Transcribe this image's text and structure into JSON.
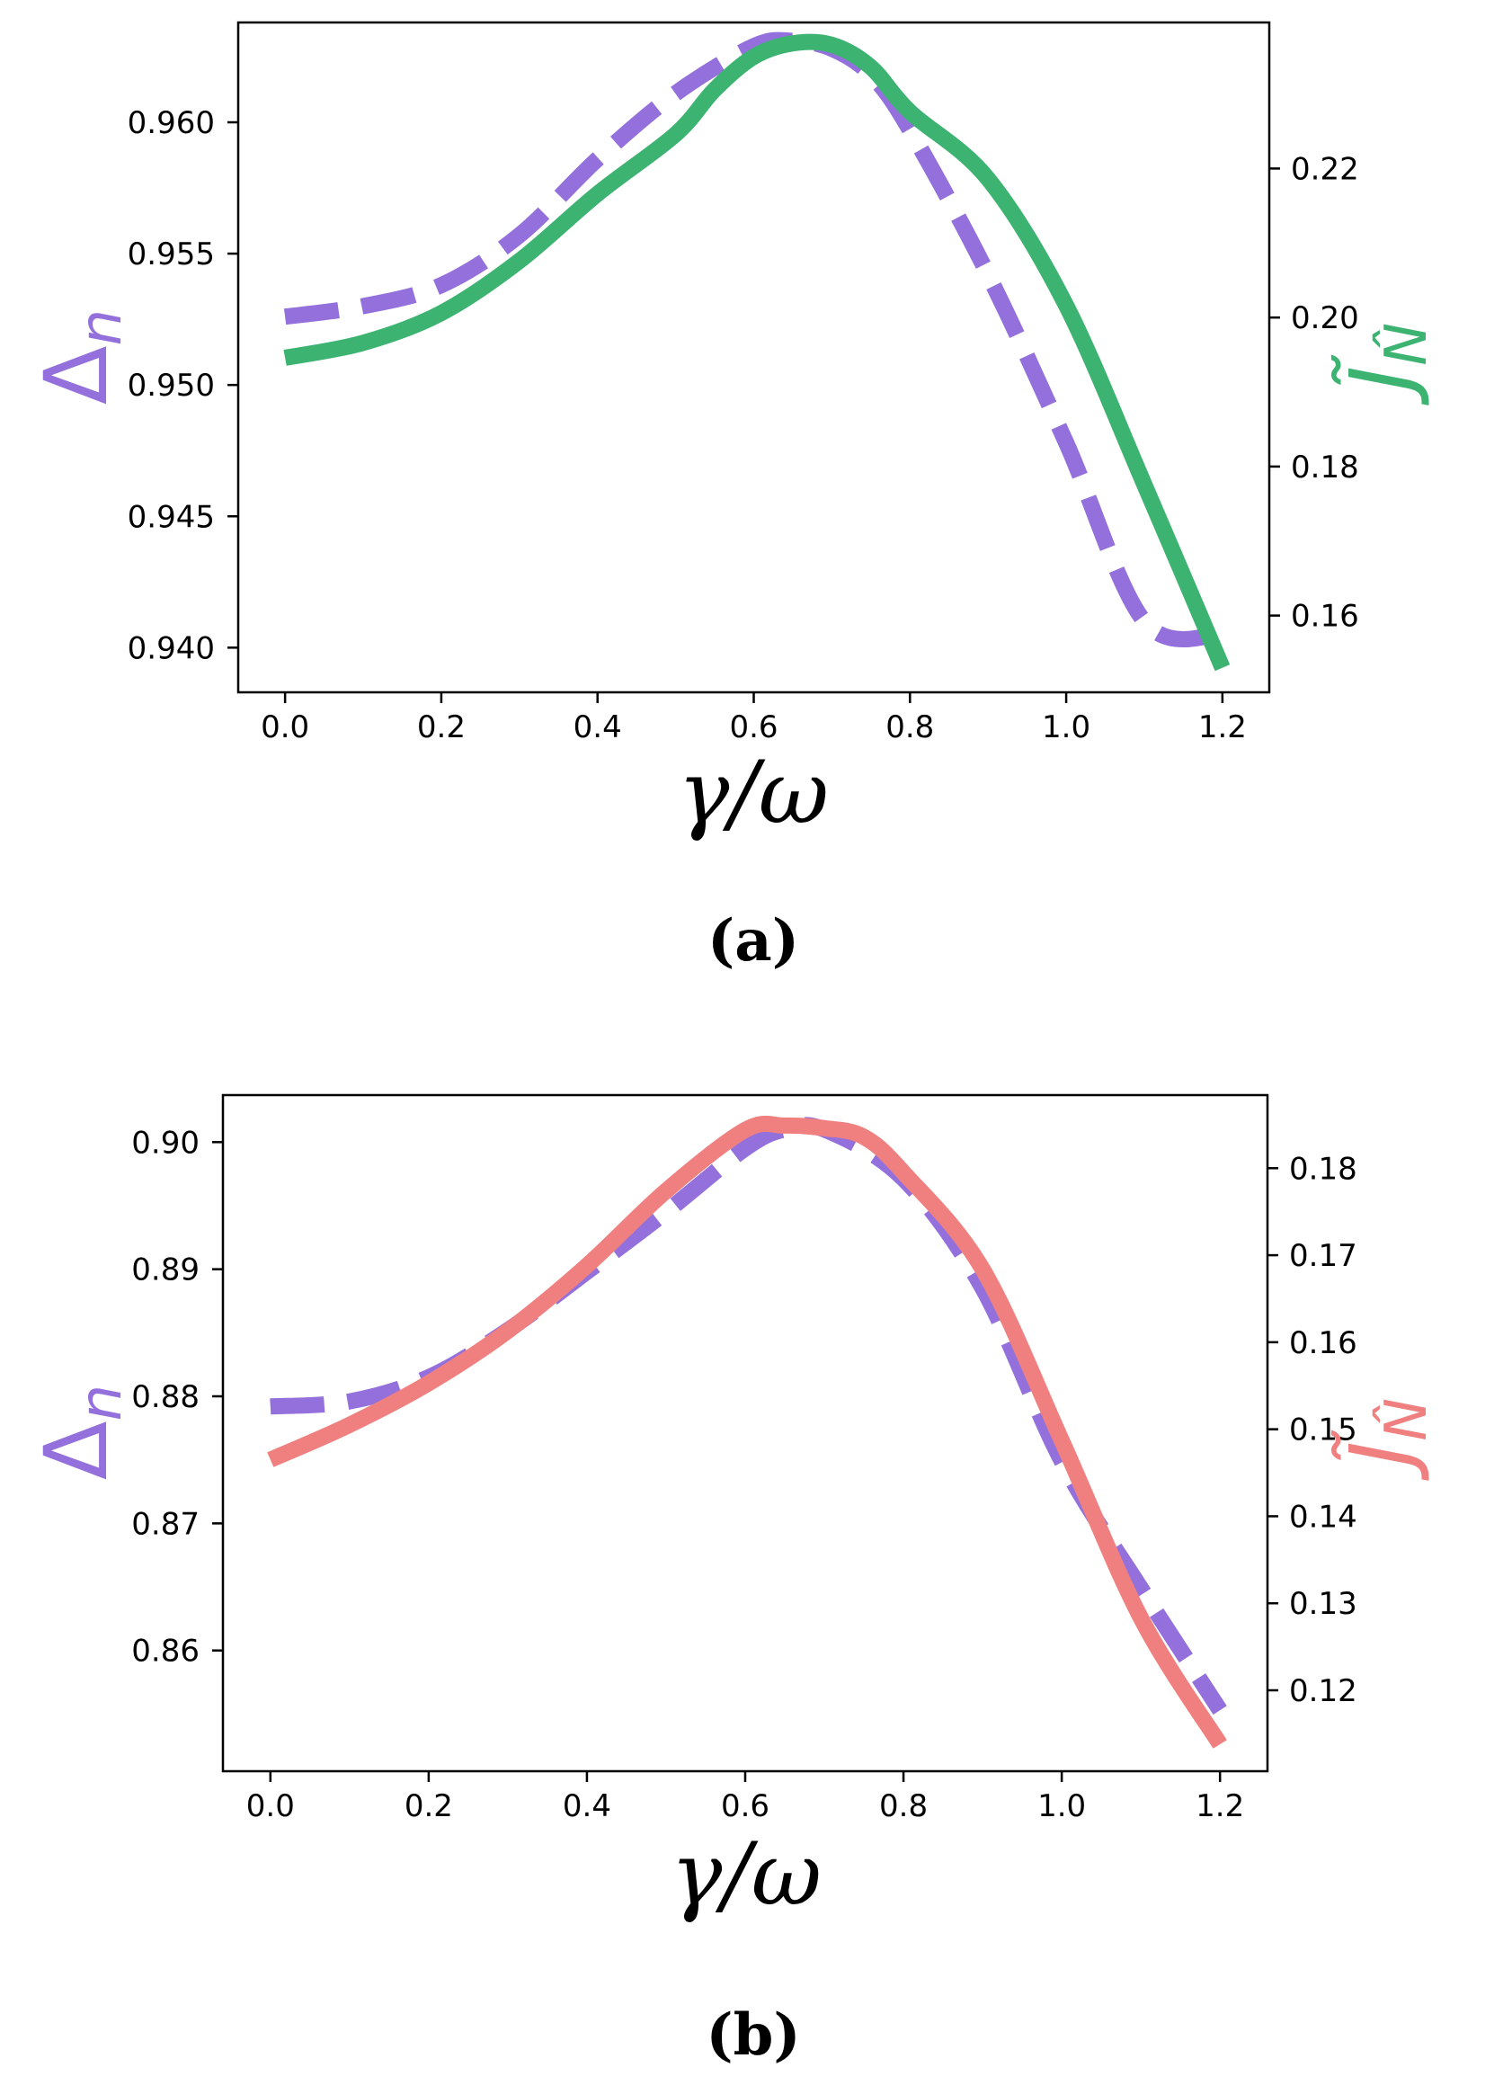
{
  "colors": {
    "delta": "#9370DB",
    "j_a": "#3CB371",
    "j_b": "#F08080",
    "axis": "#000000"
  },
  "chart_data": [
    {
      "type": "line",
      "panel_label": "(a)",
      "xlabel": "γ/ω",
      "ylabel_left": "Δ",
      "ylabel_left_sub": "n",
      "ylabel_right": "J̃",
      "ylabel_right_sub": "N̂",
      "xlim": [
        -0.06,
        1.26
      ],
      "ylim_left": [
        0.9383,
        0.9638
      ],
      "ylim_right": [
        0.1497,
        0.2396
      ],
      "x_ticks": [
        "0.0",
        "0.2",
        "0.4",
        "0.6",
        "0.8",
        "1.0",
        "1.2"
      ],
      "x_tick_values": [
        0.0,
        0.2,
        0.4,
        0.6,
        0.8,
        1.0,
        1.2
      ],
      "y_left_ticks": [
        "0.940",
        "0.945",
        "0.950",
        "0.955",
        "0.960"
      ],
      "y_left_tick_values": [
        0.94,
        0.945,
        0.95,
        0.955,
        0.96
      ],
      "y_right_ticks": [
        "0.16",
        "0.18",
        "0.20",
        "0.22"
      ],
      "y_right_tick_values": [
        0.16,
        0.18,
        0.2,
        0.22
      ],
      "series": [
        {
          "name": "Δn",
          "axis": "left",
          "style": "dashed",
          "x": [
            0.0,
            0.1,
            0.2,
            0.3,
            0.4,
            0.5,
            0.6,
            0.65,
            0.7,
            0.75,
            0.8,
            0.9,
            1.0,
            1.1,
            1.2
          ],
          "values": [
            0.9526,
            0.953,
            0.9538,
            0.9557,
            0.9586,
            0.9611,
            0.9629,
            0.9631,
            0.9628,
            0.9618,
            0.9597,
            0.9542,
            0.9478,
            0.941,
            0.9405
          ]
        },
        {
          "name": "J̃N̂",
          "axis": "right",
          "style": "solid",
          "x": [
            0.0,
            0.1,
            0.2,
            0.3,
            0.4,
            0.5,
            0.55,
            0.6,
            0.65,
            0.7,
            0.75,
            0.8,
            0.9,
            1.0,
            1.1,
            1.2
          ],
          "values": [
            0.1946,
            0.1966,
            0.2006,
            0.2076,
            0.2166,
            0.2246,
            0.2306,
            0.235,
            0.2368,
            0.2366,
            0.2336,
            0.2276,
            0.2186,
            0.2016,
            0.1776,
            0.153
          ]
        }
      ]
    },
    {
      "type": "line",
      "panel_label": "(b)",
      "xlabel": "γ/ω",
      "ylabel_left": "Δ",
      "ylabel_left_sub": "n",
      "ylabel_right": "J̃",
      "ylabel_right_sub": "N̂",
      "xlim": [
        -0.06,
        1.26
      ],
      "ylim_left": [
        0.8505,
        0.9037
      ],
      "ylim_right": [
        0.1107,
        0.1884
      ],
      "x_ticks": [
        "0.0",
        "0.2",
        "0.4",
        "0.6",
        "0.8",
        "1.0",
        "1.2"
      ],
      "x_tick_values": [
        0.0,
        0.2,
        0.4,
        0.6,
        0.8,
        1.0,
        1.2
      ],
      "y_left_ticks": [
        "0.86",
        "0.87",
        "0.88",
        "0.89",
        "0.90"
      ],
      "y_left_tick_values": [
        0.86,
        0.87,
        0.88,
        0.89,
        0.9
      ],
      "y_right_ticks": [
        "0.12",
        "0.13",
        "0.14",
        "0.15",
        "0.16",
        "0.17",
        "0.18"
      ],
      "y_right_tick_values": [
        0.12,
        0.13,
        0.14,
        0.15,
        0.16,
        0.17,
        0.18
      ],
      "series": [
        {
          "name": "Δn",
          "axis": "left",
          "style": "dashed",
          "x": [
            0.0,
            0.1,
            0.2,
            0.3,
            0.4,
            0.5,
            0.6,
            0.65,
            0.7,
            0.8,
            0.9,
            1.0,
            1.1,
            1.2
          ],
          "values": [
            0.8792,
            0.8796,
            0.8815,
            0.8852,
            0.8898,
            0.8945,
            0.8995,
            0.901,
            0.901,
            0.8971,
            0.8885,
            0.8749,
            0.8649,
            0.8553
          ]
        },
        {
          "name": "J̃N̂",
          "axis": "right",
          "style": "solid",
          "x": [
            0.0,
            0.1,
            0.2,
            0.3,
            0.4,
            0.5,
            0.6,
            0.65,
            0.7,
            0.75,
            0.8,
            0.9,
            1.0,
            1.1,
            1.2
          ],
          "values": [
            0.1465,
            0.1505,
            0.1553,
            0.1613,
            0.1688,
            0.1774,
            0.1844,
            0.1849,
            0.1846,
            0.1836,
            0.1795,
            0.1684,
            0.1487,
            0.1283,
            0.1138
          ]
        }
      ]
    }
  ]
}
